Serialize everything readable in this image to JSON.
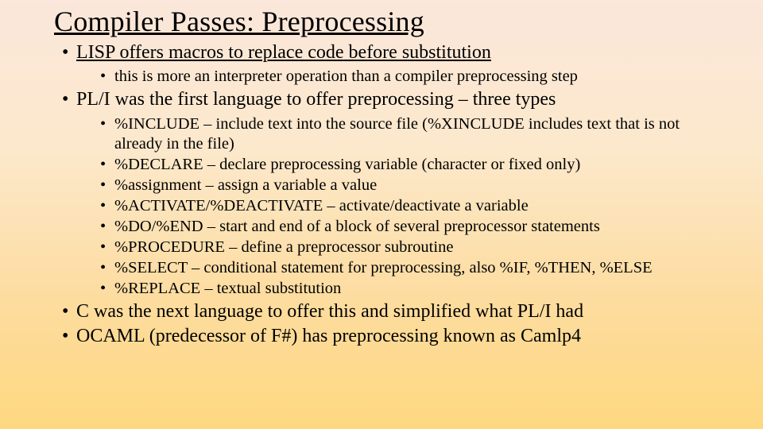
{
  "title": "Compiler Passes:  Preprocessing",
  "bullets": {
    "b1": "LISP offers macros to replace code before substitution",
    "b1_1": "this is more an interpreter operation than a compiler preprocessing step",
    "b2": "PL/I was the first language to offer preprocessing – three types",
    "b2_1": "%INCLUDE – include text into the source file (%XINCLUDE includes text that is not already in the file)",
    "b2_2": "%DECLARE – declare preprocessing variable (character or fixed only)",
    "b2_3": "%assignment – assign a variable a value",
    "b2_4": "%ACTIVATE/%DEACTIVATE – activate/deactivate a variable",
    "b2_5": "%DO/%END – start and end of a block of several preprocessor statements",
    "b2_6": "%PROCEDURE – define a preprocessor subroutine",
    "b2_7": "%SELECT – conditional statement for preprocessing, also %IF, %THEN, %ELSE",
    "b2_8": "%REPLACE – textual substitution",
    "b3": "C was the next language to offer this and simplified what PL/I had",
    "b4": "OCAML (predecessor of F#) has preprocessing known as Camlp4"
  },
  "style": {
    "title_fontsize": 36,
    "l1_fontsize": 24,
    "l2_fontsize": 20.5,
    "text_color": "#000000",
    "bg_gradient_top": "#fbe7db",
    "bg_gradient_mid1": "#fce8cb",
    "bg_gradient_mid2": "#fddc9f",
    "bg_gradient_bottom": "#fed880",
    "font_family": "Times New Roman"
  }
}
